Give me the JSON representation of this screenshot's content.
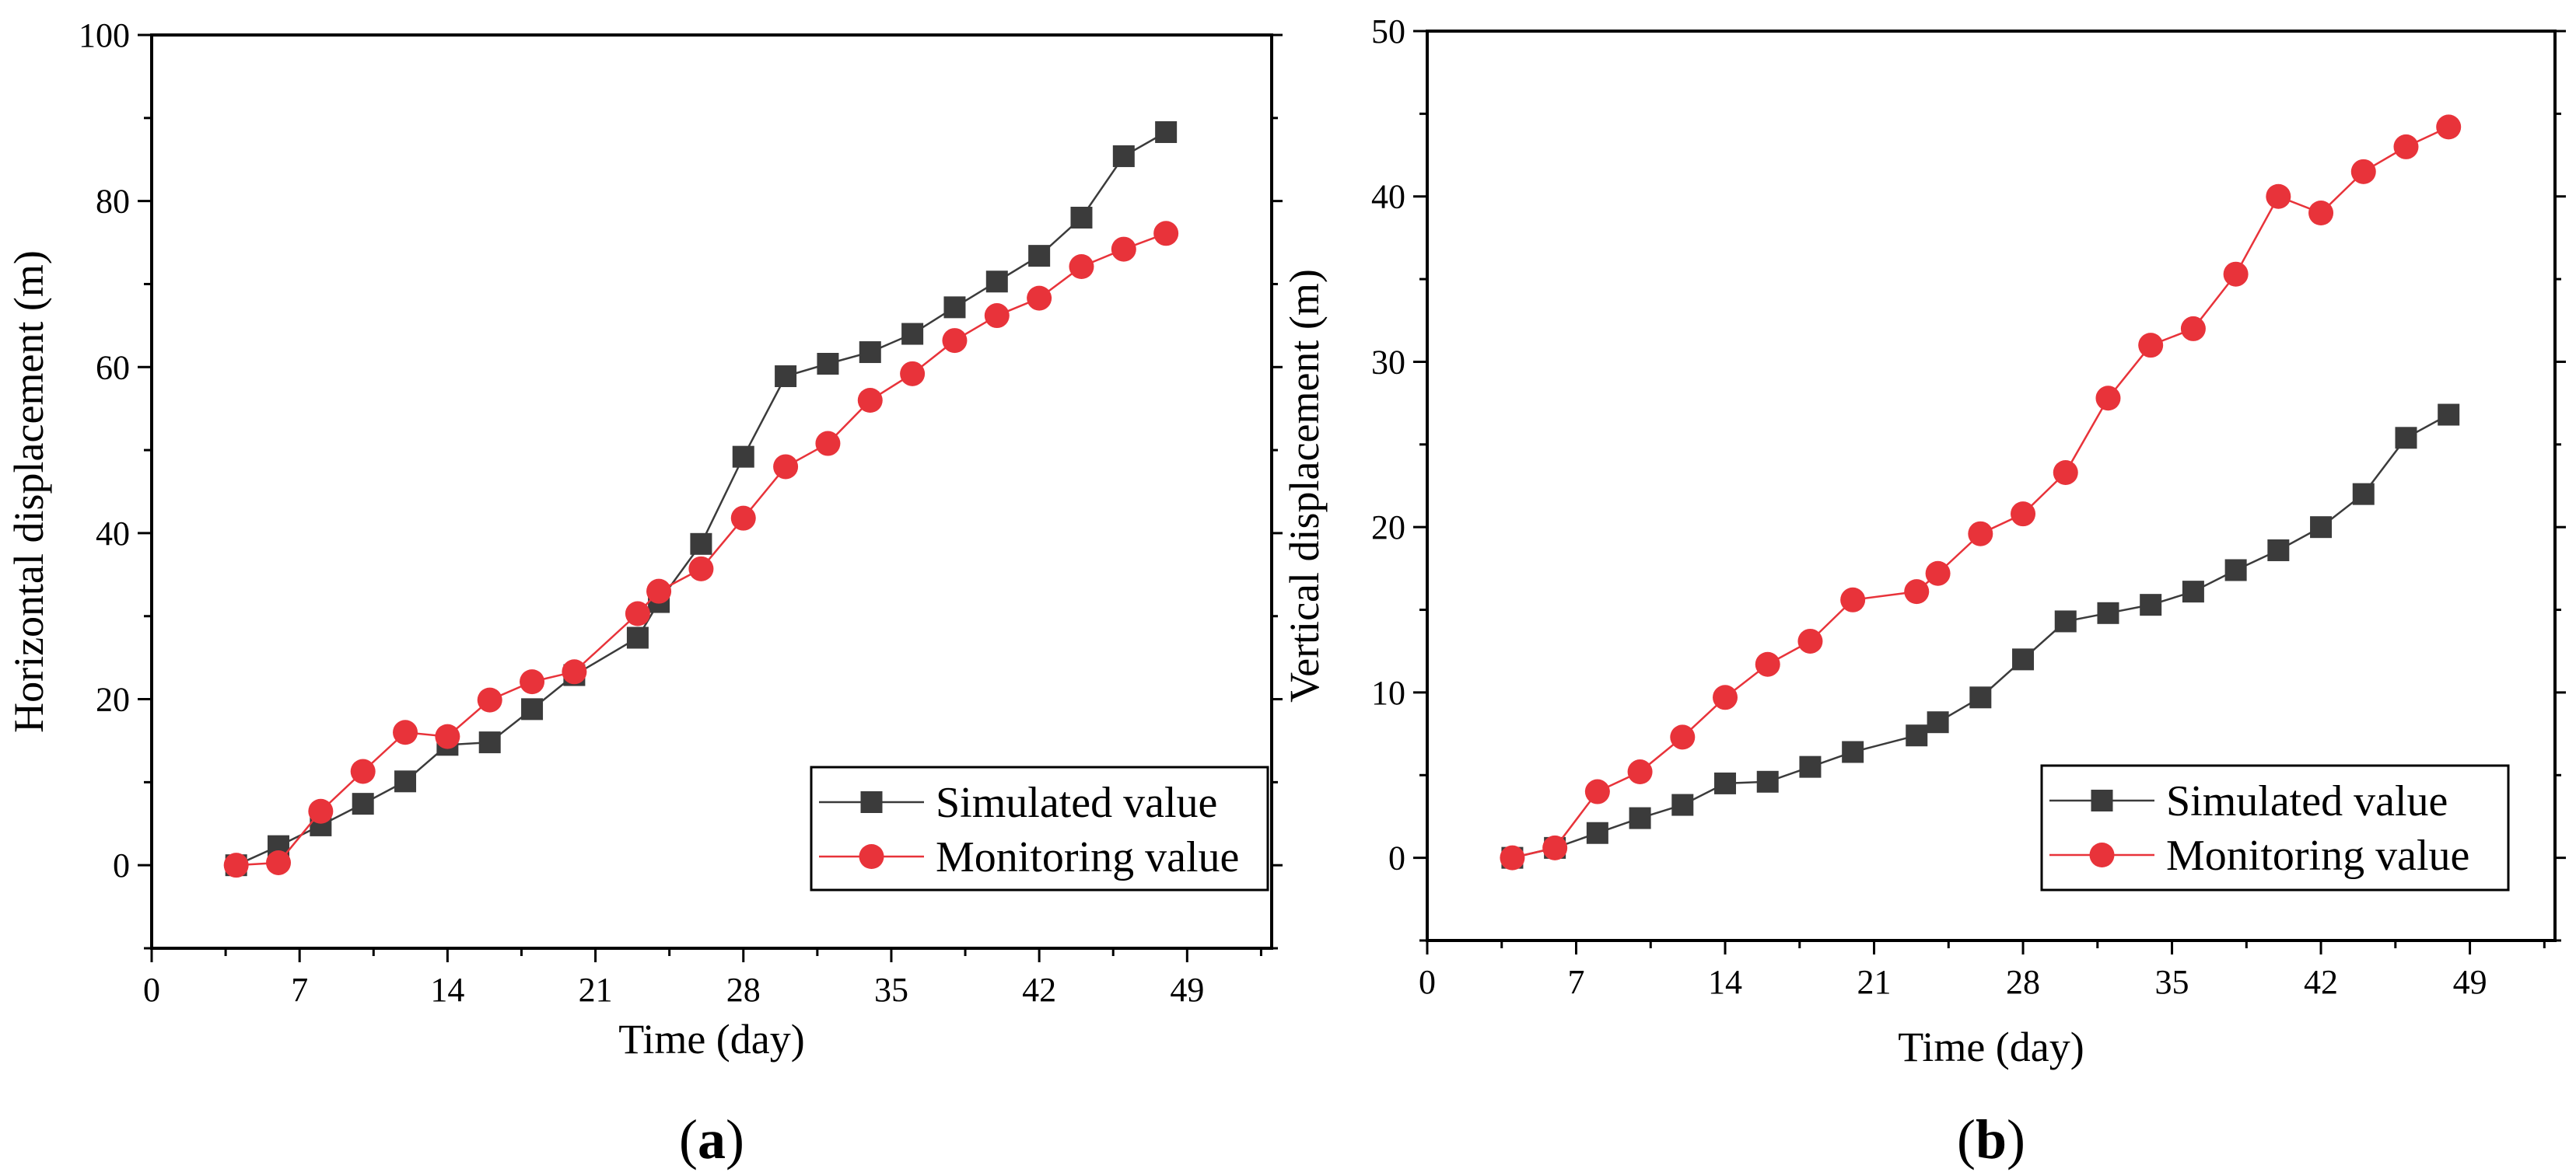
{
  "colors": {
    "simulated": "#3b3b3b",
    "monitoring": "#e8333a"
  },
  "chart_data": [
    {
      "panel_label": "a",
      "type": "line",
      "xlabel": "Time (day)",
      "ylabel": "Horizontal displacement (m)",
      "xlim": [
        0,
        53
      ],
      "ylim": [
        -10,
        100
      ],
      "xticks": [
        0,
        7,
        14,
        21,
        28,
        35,
        42,
        49
      ],
      "yticks": [
        0,
        20,
        40,
        60,
        80,
        100
      ],
      "grid": false,
      "legend_position": "lower-right",
      "series": [
        {
          "name": "Simulated value",
          "marker": "square",
          "x": [
            4,
            6,
            8,
            10,
            12,
            14,
            16,
            18,
            20,
            23,
            24,
            26,
            28,
            30,
            32,
            34,
            36,
            38,
            40,
            42,
            44,
            46,
            48
          ],
          "y": [
            0,
            2.3,
            4.8,
            7.4,
            10.1,
            14.5,
            14.8,
            18.8,
            22.9,
            27.4,
            31.7,
            38.7,
            49.2,
            58.9,
            60.4,
            61.8,
            64.0,
            67.2,
            70.3,
            73.4,
            78.0,
            85.4,
            88.3
          ]
        },
        {
          "name": "Monitoring value",
          "marker": "circle",
          "x": [
            4,
            6,
            8,
            10,
            12,
            14,
            16,
            18,
            20,
            23,
            24,
            26,
            28,
            30,
            32,
            34,
            36,
            38,
            40,
            42,
            44,
            46,
            48
          ],
          "y": [
            0,
            0.3,
            6.5,
            11.3,
            16.0,
            15.5,
            19.9,
            22.1,
            23.3,
            30.3,
            33.0,
            35.7,
            41.8,
            48.0,
            50.8,
            56.0,
            59.2,
            63.2,
            66.2,
            68.3,
            72.1,
            74.2,
            76.1
          ]
        }
      ]
    },
    {
      "panel_label": "b",
      "type": "line",
      "xlabel": "Time (day)",
      "ylabel": "Vertical displacement (m)",
      "xlim": [
        0,
        53
      ],
      "ylim": [
        -5,
        50
      ],
      "xticks": [
        0,
        7,
        14,
        21,
        28,
        35,
        42,
        49
      ],
      "yticks": [
        0,
        10,
        20,
        30,
        40,
        50
      ],
      "grid": false,
      "legend_position": "lower-right",
      "series": [
        {
          "name": "Simulated value",
          "marker": "square",
          "x": [
            4,
            6,
            8,
            10,
            12,
            14,
            16,
            18,
            20,
            23,
            24,
            26,
            28,
            30,
            32,
            34,
            36,
            38,
            40,
            42,
            44,
            46,
            48
          ],
          "y": [
            0,
            0.6,
            1.5,
            2.4,
            3.2,
            4.5,
            4.6,
            5.5,
            6.4,
            7.4,
            8.2,
            9.7,
            12.0,
            14.3,
            14.8,
            15.3,
            16.1,
            17.4,
            18.6,
            20.0,
            22.0,
            25.4,
            26.8
          ]
        },
        {
          "name": "Monitoring value",
          "marker": "circle",
          "x": [
            4,
            6,
            8,
            10,
            12,
            14,
            16,
            18,
            20,
            23,
            24,
            26,
            28,
            30,
            32,
            34,
            36,
            38,
            40,
            42,
            44,
            46,
            48
          ],
          "y": [
            0,
            0.6,
            4.0,
            5.2,
            7.3,
            9.7,
            11.7,
            13.1,
            15.6,
            16.1,
            17.2,
            19.6,
            20.8,
            23.3,
            27.8,
            31.0,
            32.0,
            35.3,
            40.0,
            39.0,
            41.5,
            43.0,
            44.2
          ]
        }
      ]
    }
  ]
}
